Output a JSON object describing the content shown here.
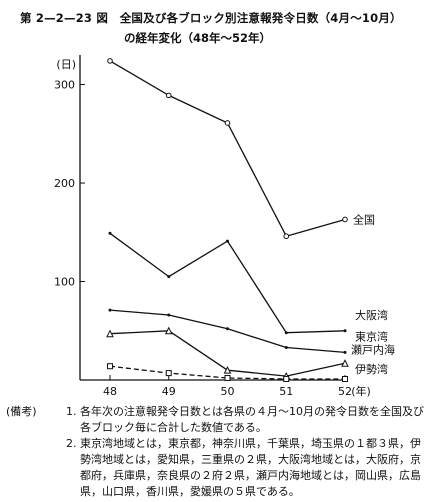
{
  "title_line1": "第 2—2—23 図　全国及び各ブロック別注意報発令日数（4月〜10月）",
  "title_line2": "の経年変化（48年〜52年）",
  "chart_data": {
    "type": "line",
    "x": [
      48,
      49,
      50,
      51,
      52
    ],
    "xlabel": "(年)",
    "ylabel": "(日)",
    "ylim": [
      0,
      330
    ],
    "yticks": [
      100,
      200,
      300
    ],
    "xticks": [
      "48",
      "49",
      "50",
      "51",
      "52"
    ],
    "grid": false,
    "series": [
      {
        "name": "全国",
        "values": [
          324,
          289,
          261,
          146,
          163
        ],
        "marker": "circle",
        "dash": false
      },
      {
        "name": "大阪湾",
        "values": [
          149,
          105,
          141,
          48,
          50
        ],
        "marker": "none",
        "dash": false
      },
      {
        "name": "東京湾",
        "values": [
          71,
          66,
          52,
          33,
          28
        ],
        "marker": "none",
        "dash": false
      },
      {
        "name": "瀬戸内海",
        "values": [
          47,
          50,
          10,
          4,
          17
        ],
        "marker": "triangle",
        "dash": false
      },
      {
        "name": "伊勢湾",
        "values": [
          14,
          7,
          2,
          1,
          1
        ],
        "marker": "square",
        "dash": true
      }
    ]
  },
  "notes": {
    "head": "(備考)",
    "n1_num": "1.",
    "n1_text": "各年次の注意報発令日数とは各県の４月〜10月の発令日数を全国及び各ブロック毎に合計した数値である。",
    "n2_num": "2.",
    "n2_text": "東京湾地域とは，東京都，神奈川県，千葉県，埼玉県の１都３県，伊勢湾地域とは，愛知県，三重県の２県，大阪湾地域とは，大阪府，京都府，兵庫県，奈良県の２府２県，瀬戸内海地域とは，岡山県，広島県，山口県，香川県，愛媛県の５県である。"
  }
}
